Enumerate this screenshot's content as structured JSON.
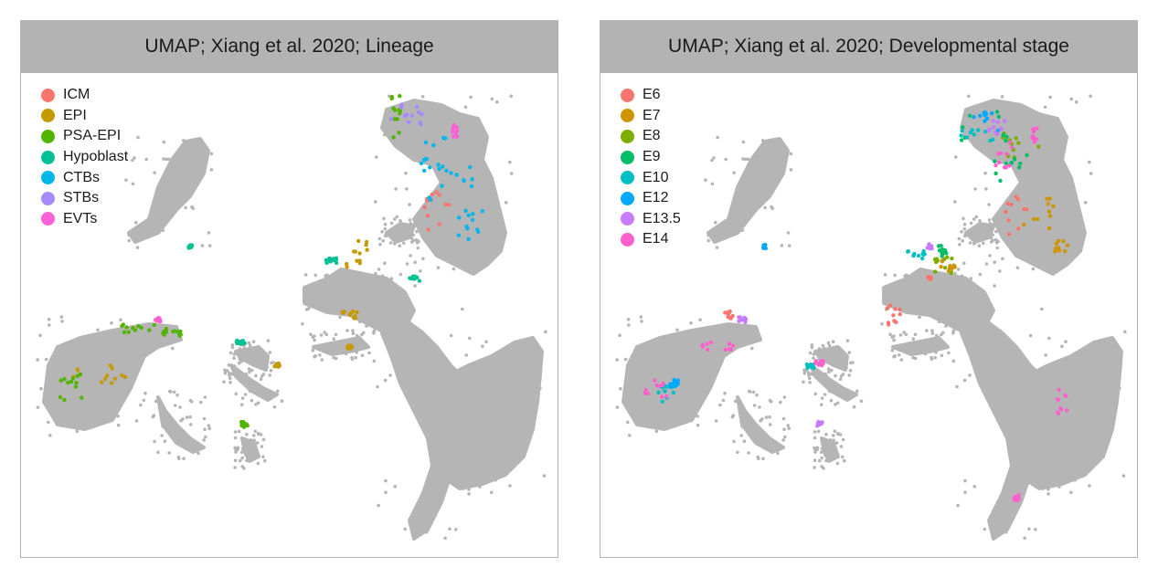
{
  "chart_data": [
    {
      "type": "scatter",
      "title": "UMAP; Xiang et al. 2020; Lineage",
      "legend_position": "top-left",
      "grid": false,
      "background_color": "#b3b3b3",
      "series": [
        {
          "name": "ICM",
          "color": "#F8766D"
        },
        {
          "name": "EPI",
          "color": "#C49A00"
        },
        {
          "name": "PSA-EPI",
          "color": "#53B400"
        },
        {
          "name": "Hypoblast",
          "color": "#00C094"
        },
        {
          "name": "CTBs",
          "color": "#00B6EB"
        },
        {
          "name": "STBs",
          "color": "#A58AFF"
        },
        {
          "name": "EVTs",
          "color": "#FB61D7"
        }
      ]
    },
    {
      "type": "scatter",
      "title": "UMAP; Xiang et al. 2020; Developmental stage",
      "legend_position": "top-left",
      "grid": false,
      "background_color": "#b3b3b3",
      "series": [
        {
          "name": "E6",
          "color": "#F8766D"
        },
        {
          "name": "E7",
          "color": "#CD9600"
        },
        {
          "name": "E8",
          "color": "#7CAE00"
        },
        {
          "name": "E9",
          "color": "#00BE67"
        },
        {
          "name": "E10",
          "color": "#00BFC4"
        },
        {
          "name": "E12",
          "color": "#00A9FF"
        },
        {
          "name": "E13.5",
          "color": "#C77CFF"
        },
        {
          "name": "E14",
          "color": "#FF61CC"
        }
      ]
    }
  ]
}
